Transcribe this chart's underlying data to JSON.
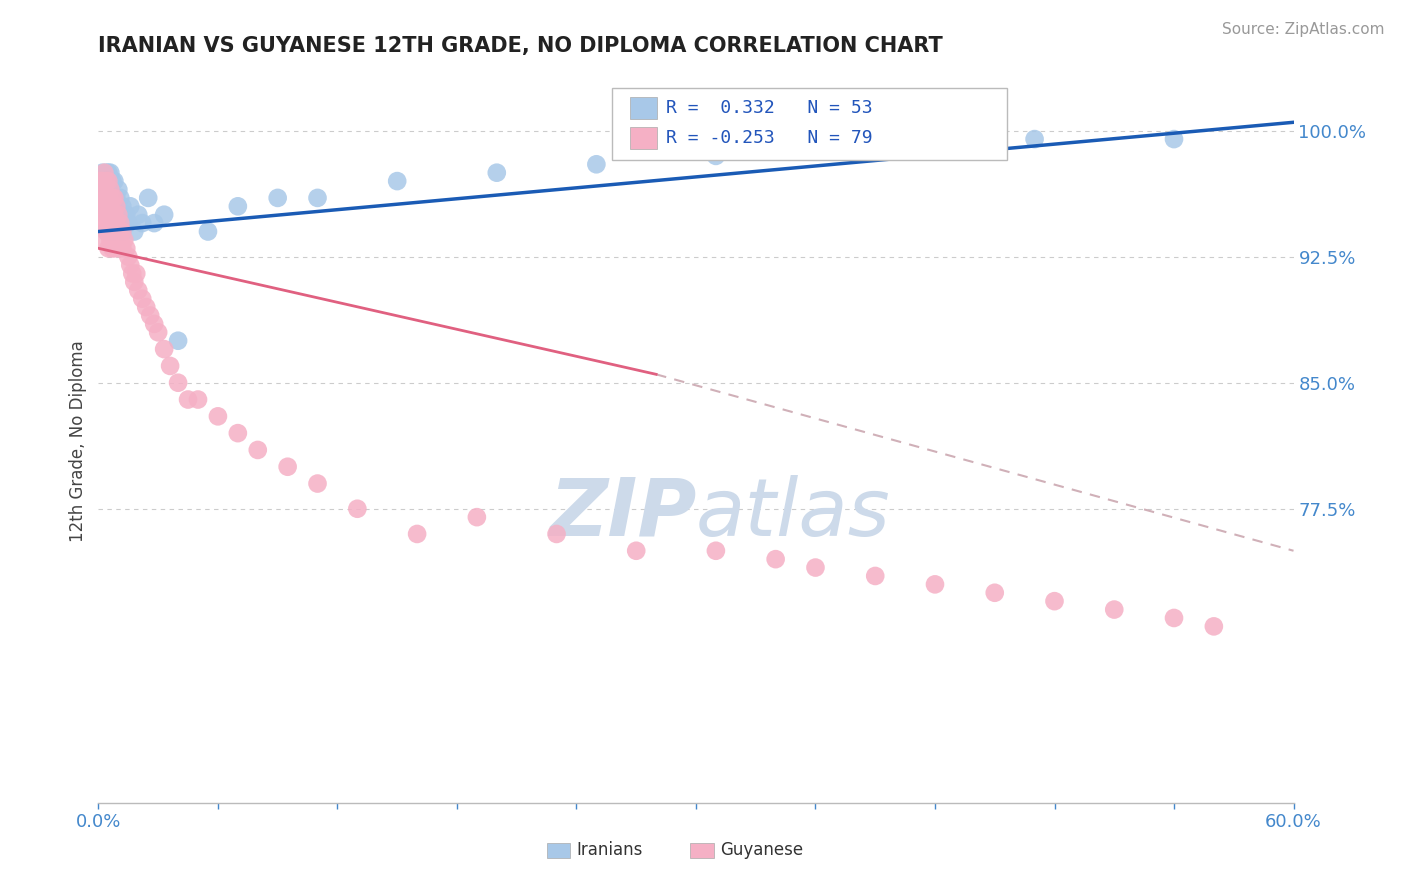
{
  "title": "IRANIAN VS GUYANESE 12TH GRADE, NO DIPLOMA CORRELATION CHART",
  "source_text": "Source: ZipAtlas.com",
  "ylabel": "12th Grade, No Diploma",
  "xlim": [
    0.0,
    0.6
  ],
  "ylim": [
    0.6,
    1.03
  ],
  "xticks": [
    0.0,
    0.06,
    0.12,
    0.18,
    0.24,
    0.3,
    0.36,
    0.42,
    0.48,
    0.54,
    0.6
  ],
  "xticklabels": [
    "0.0%",
    "",
    "",
    "",
    "",
    "",
    "",
    "",
    "",
    "",
    "60.0%"
  ],
  "ytick_positions": [
    0.775,
    0.85,
    0.925,
    1.0
  ],
  "ytick_labels": [
    "77.5%",
    "85.0%",
    "92.5%",
    "100.0%"
  ],
  "legend_r_iranian": "0.332",
  "legend_n_iranian": "53",
  "legend_r_guyanese": "-0.253",
  "legend_n_guyanese": "79",
  "iranian_color": "#a8c8e8",
  "guyanese_color": "#f5b0c5",
  "trend_iranian_color": "#1a5bb5",
  "trend_guyanese_color": "#e06080",
  "dashed_line_color": "#d0b0b8",
  "background_color": "#ffffff",
  "grid_color": "#cccccc",
  "watermark_color": "#cddaea",
  "iranians_x": [
    0.001,
    0.002,
    0.002,
    0.003,
    0.003,
    0.003,
    0.004,
    0.004,
    0.004,
    0.005,
    0.005,
    0.005,
    0.005,
    0.006,
    0.006,
    0.006,
    0.007,
    0.007,
    0.007,
    0.007,
    0.008,
    0.008,
    0.008,
    0.009,
    0.009,
    0.01,
    0.01,
    0.011,
    0.011,
    0.012,
    0.012,
    0.013,
    0.014,
    0.015,
    0.016,
    0.018,
    0.02,
    0.022,
    0.025,
    0.028,
    0.033,
    0.04,
    0.055,
    0.07,
    0.09,
    0.11,
    0.15,
    0.2,
    0.25,
    0.31,
    0.38,
    0.47,
    0.54
  ],
  "iranians_y": [
    0.97,
    0.965,
    0.975,
    0.96,
    0.97,
    0.955,
    0.975,
    0.96,
    0.94,
    0.975,
    0.965,
    0.95,
    0.94,
    0.965,
    0.975,
    0.95,
    0.97,
    0.96,
    0.95,
    0.94,
    0.96,
    0.97,
    0.945,
    0.96,
    0.95,
    0.965,
    0.945,
    0.96,
    0.95,
    0.955,
    0.94,
    0.945,
    0.95,
    0.945,
    0.955,
    0.94,
    0.95,
    0.945,
    0.96,
    0.945,
    0.95,
    0.875,
    0.94,
    0.955,
    0.96,
    0.96,
    0.97,
    0.975,
    0.98,
    0.985,
    0.99,
    0.995,
    0.995
  ],
  "guyanese_x": [
    0.001,
    0.001,
    0.002,
    0.002,
    0.002,
    0.003,
    0.003,
    0.003,
    0.003,
    0.003,
    0.004,
    0.004,
    0.004,
    0.004,
    0.005,
    0.005,
    0.005,
    0.005,
    0.005,
    0.006,
    0.006,
    0.006,
    0.006,
    0.007,
    0.007,
    0.007,
    0.007,
    0.008,
    0.008,
    0.008,
    0.008,
    0.009,
    0.009,
    0.009,
    0.01,
    0.01,
    0.01,
    0.011,
    0.011,
    0.012,
    0.012,
    0.013,
    0.014,
    0.015,
    0.016,
    0.017,
    0.018,
    0.019,
    0.02,
    0.022,
    0.024,
    0.026,
    0.028,
    0.03,
    0.033,
    0.036,
    0.04,
    0.045,
    0.05,
    0.06,
    0.07,
    0.08,
    0.095,
    0.11,
    0.13,
    0.16,
    0.19,
    0.23,
    0.27,
    0.31,
    0.34,
    0.36,
    0.39,
    0.42,
    0.45,
    0.48,
    0.51,
    0.54,
    0.56
  ],
  "guyanese_y": [
    0.97,
    0.955,
    0.96,
    0.97,
    0.945,
    0.975,
    0.965,
    0.955,
    0.945,
    0.935,
    0.97,
    0.96,
    0.95,
    0.94,
    0.97,
    0.96,
    0.95,
    0.94,
    0.93,
    0.965,
    0.955,
    0.945,
    0.935,
    0.96,
    0.95,
    0.94,
    0.93,
    0.96,
    0.95,
    0.94,
    0.93,
    0.955,
    0.945,
    0.935,
    0.95,
    0.94,
    0.93,
    0.945,
    0.935,
    0.94,
    0.93,
    0.935,
    0.93,
    0.925,
    0.92,
    0.915,
    0.91,
    0.915,
    0.905,
    0.9,
    0.895,
    0.89,
    0.885,
    0.88,
    0.87,
    0.86,
    0.85,
    0.84,
    0.84,
    0.83,
    0.82,
    0.81,
    0.8,
    0.79,
    0.775,
    0.76,
    0.77,
    0.76,
    0.75,
    0.75,
    0.745,
    0.74,
    0.735,
    0.73,
    0.725,
    0.72,
    0.715,
    0.71,
    0.705
  ],
  "trend_iranian_x0": 0.0,
  "trend_iranian_x1": 0.6,
  "trend_iranian_y0": 0.94,
  "trend_iranian_y1": 1.005,
  "trend_guyanese_x0": 0.0,
  "trend_guyanese_x1": 0.28,
  "trend_guyanese_y0": 0.93,
  "trend_guyanese_y1": 0.855,
  "trend_guyanese_dash_x0": 0.28,
  "trend_guyanese_dash_x1": 0.6,
  "trend_guyanese_dash_y0": 0.855,
  "trend_guyanese_dash_y1": 0.75
}
